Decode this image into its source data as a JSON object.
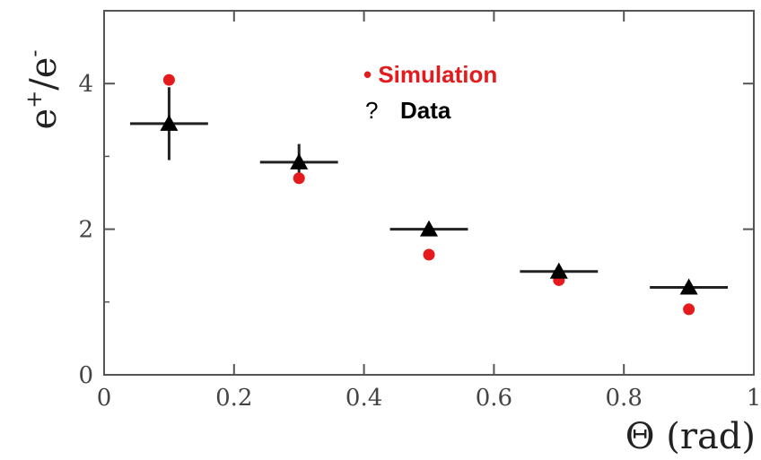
{
  "colors": {
    "simulation": "#e41a1c",
    "data": "#000000",
    "axis": "#555555"
  },
  "chart_data": {
    "type": "scatter",
    "xlabel": "Θ (rad)",
    "ylabel_base": "e",
    "ylabel_sup1": "+",
    "ylabel_mid": "/e",
    "ylabel_sup2": "-",
    "xlim": [
      0,
      1
    ],
    "ylim": [
      0,
      5
    ],
    "x_ticks": [
      {
        "v": 0,
        "label": "0"
      },
      {
        "v": 0.2,
        "label": "0.2"
      },
      {
        "v": 0.4,
        "label": "0.4"
      },
      {
        "v": 0.6,
        "label": "0.6"
      },
      {
        "v": 0.8,
        "label": "0.8"
      },
      {
        "v": 1.0,
        "label": "1"
      }
    ],
    "y_ticks": [
      {
        "v": 0,
        "label": "0"
      },
      {
        "v": 2,
        "label": "2"
      },
      {
        "v": 4,
        "label": "4"
      }
    ],
    "legend": {
      "simulation_label": "• Simulation",
      "data_marker": "?",
      "data_label": "Data"
    },
    "series": [
      {
        "name": "Simulation",
        "marker": "circle",
        "points": [
          {
            "x": 0.1,
            "y": 4.05
          },
          {
            "x": 0.3,
            "y": 2.7
          },
          {
            "x": 0.5,
            "y": 1.65
          },
          {
            "x": 0.7,
            "y": 1.3
          },
          {
            "x": 0.9,
            "y": 0.9
          }
        ]
      },
      {
        "name": "Data",
        "marker": "triangle",
        "points": [
          {
            "x": 0.1,
            "y": 3.45,
            "xerr": 0.06,
            "yerr": 0.5
          },
          {
            "x": 0.3,
            "y": 2.92,
            "xerr": 0.06,
            "yerr": 0.25
          },
          {
            "x": 0.5,
            "y": 2.0,
            "xerr": 0.06,
            "yerr": 0.05
          },
          {
            "x": 0.7,
            "y": 1.42,
            "xerr": 0.06,
            "yerr": 0.05
          },
          {
            "x": 0.9,
            "y": 1.2,
            "xerr": 0.06,
            "yerr": 0.05
          }
        ]
      }
    ]
  }
}
